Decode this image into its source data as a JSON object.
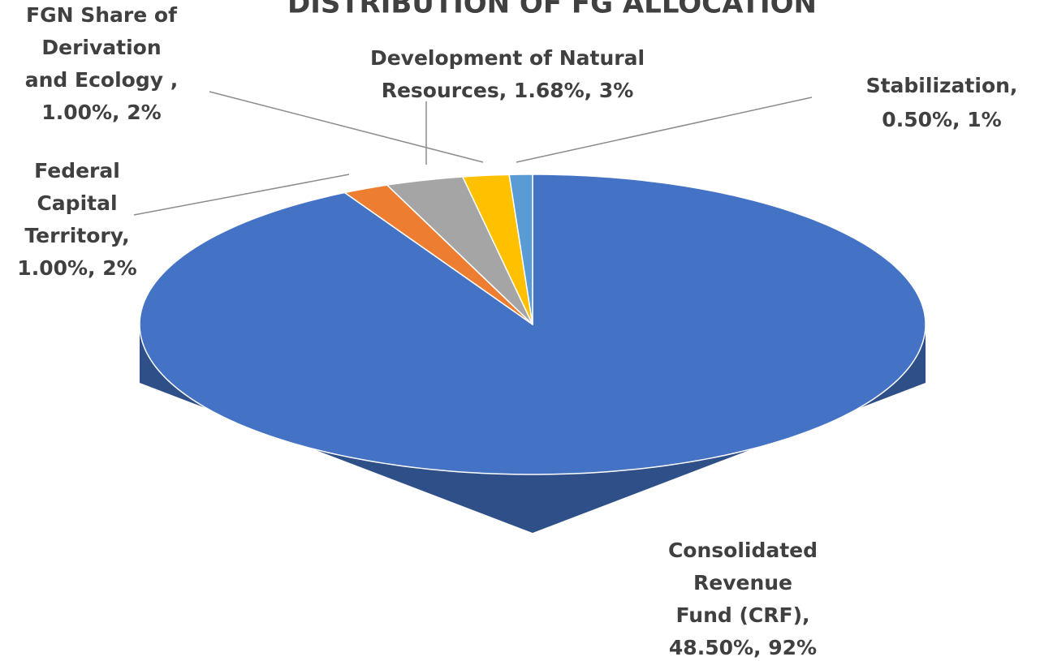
{
  "chart_data": {
    "type": "pie3d",
    "title": "DISTRIBUTION OF FG ALLOCATION",
    "data_labels": [
      [
        "Consolidated",
        "Revenue",
        "Fund (CRF),",
        "48.50%, 92%"
      ],
      [
        "Federal",
        "Capital",
        "Territory,",
        "1.00%, 2%"
      ],
      [
        "Development of Natural",
        "Resources, 1.68%, 3%"
      ],
      [
        "FGN Share of",
        "Derivation",
        "and Ecology ,",
        "1.00%, 2%"
      ],
      [
        "Stabilization,",
        "0.50%, 1%"
      ]
    ],
    "values": [
      48.5,
      1.0,
      1.68,
      1.0,
      0.5
    ],
    "shares": [
      92,
      2,
      3,
      2,
      1
    ],
    "colors": [
      "#4472c4",
      "#ed7d31",
      "#a5a5a5",
      "#ffc000",
      "#5b9bd5"
    ]
  }
}
